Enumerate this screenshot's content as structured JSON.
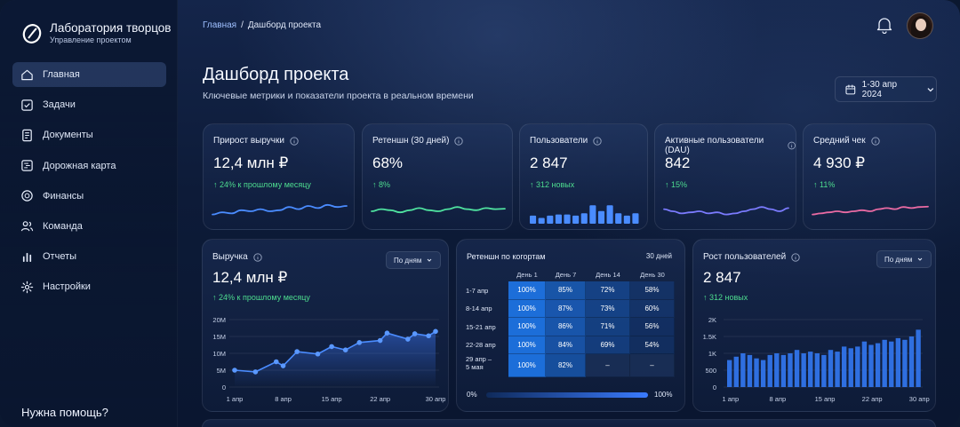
{
  "brand": {
    "title": "Лаборатория творцов",
    "subtitle": "Управление проектом"
  },
  "sidebar": {
    "items": [
      {
        "label": "Главная",
        "icon": "home-icon",
        "active": true
      },
      {
        "label": "Задачи",
        "icon": "checkbox-icon"
      },
      {
        "label": "Документы",
        "icon": "document-icon"
      },
      {
        "label": "Дорожная карта",
        "icon": "roadmap-icon"
      },
      {
        "label": "Финансы",
        "icon": "finance-icon"
      },
      {
        "label": "Команда",
        "icon": "team-icon"
      },
      {
        "label": "Отчеты",
        "icon": "reports-icon"
      },
      {
        "label": "Настройки",
        "icon": "settings-icon"
      }
    ],
    "help": "Нужна помощь?"
  },
  "breadcrumb": {
    "home": "Главная",
    "separator": "/",
    "current": "Дашборд проекта"
  },
  "header": {
    "title": "Дашборд проекта",
    "subtitle": "Ключевые метрики и показатели проекта в реальном времени",
    "date_range": "1-30 апр 2024"
  },
  "colors": {
    "accent": "#4a8cff",
    "positive": "#4ddc8f",
    "spark_blue": "#4a8cff",
    "spark_green": "#4fe3a0",
    "spark_purple": "#7b7bff",
    "spark_pink": "#e96aa3"
  },
  "kpis": [
    {
      "title": "Прирост выручки",
      "value": "12,4 млн ₽",
      "delta": "↑ 24% к прошлому месяцу"
    },
    {
      "title": "Ретеншн (30 дней)",
      "value": "68%",
      "delta": "↑ 8%"
    },
    {
      "title": "Пользователи",
      "value": "2 847",
      "delta": "↑ 312 новых"
    },
    {
      "title": "Активные пользователи (DAU)",
      "value": "842",
      "delta": "↑ 15%"
    },
    {
      "title": "Средний чек",
      "value": "4 930 ₽",
      "delta": "↑ 11%"
    }
  ],
  "revenue": {
    "title": "Выручка",
    "value": "12,4 млн ₽",
    "delta": "↑ 24% к прошлому месяцу",
    "period": "По дням"
  },
  "cohort": {
    "title": "Ретеншн по когортам",
    "period": "30 дней",
    "columns": [
      "День 1",
      "День 7",
      "День 14",
      "День 30"
    ],
    "rows": [
      {
        "label": "1-7 апр",
        "cells": [
          "100%",
          "85%",
          "72%",
          "58%"
        ]
      },
      {
        "label": "8-14 апр",
        "cells": [
          "100%",
          "87%",
          "73%",
          "60%"
        ]
      },
      {
        "label": "15-21 апр",
        "cells": [
          "100%",
          "86%",
          "71%",
          "56%"
        ]
      },
      {
        "label": "22-28 апр",
        "cells": [
          "100%",
          "84%",
          "69%",
          "54%"
        ]
      },
      {
        "label": "29 апр –\n5 мая",
        "cells": [
          "100%",
          "82%",
          "–",
          "–"
        ]
      }
    ],
    "scale_min": "0%",
    "scale_max": "100%"
  },
  "users_growth": {
    "title": "Рост пользователей",
    "value": "2 847",
    "delta": "↑ 312 новых",
    "period": "По дням"
  },
  "chart_data": [
    {
      "type": "line",
      "title": "Выручка",
      "x_tick_labels": [
        "1 апр",
        "8 апр",
        "15 апр",
        "22 апр",
        "30 апр"
      ],
      "y_tick_labels": [
        "0",
        "5M",
        "10M",
        "15M",
        "20M"
      ],
      "ylim": [
        0,
        20
      ],
      "x": [
        1,
        4,
        7,
        8,
        10,
        13,
        15,
        17,
        19,
        22,
        23,
        26,
        27,
        29,
        30
      ],
      "values": [
        5.0,
        4.5,
        7.5,
        6.3,
        10.5,
        9.8,
        12.0,
        11.0,
        13.2,
        13.8,
        16.0,
        14.2,
        15.8,
        15.2,
        16.5
      ],
      "grid": true
    },
    {
      "type": "bar",
      "title": "Рост пользователей",
      "x_tick_labels": [
        "1 апр",
        "8 апр",
        "15 апр",
        "22 апр",
        "30 апр"
      ],
      "y_tick_labels": [
        "0",
        "500",
        "1K",
        "1.5K",
        "2K"
      ],
      "ylim": [
        0,
        2000
      ],
      "values": [
        800,
        900,
        1000,
        950,
        850,
        800,
        950,
        1000,
        950,
        1000,
        1100,
        1000,
        1050,
        1000,
        950,
        1100,
        1050,
        1200,
        1150,
        1200,
        1350,
        1250,
        1300,
        1400,
        1350,
        1450,
        1400,
        1500,
        1700
      ]
    }
  ],
  "sparklines": {
    "revenue_kpi": [
      0.35,
      0.45,
      0.4,
      0.55,
      0.5,
      0.6,
      0.5,
      0.55,
      0.7,
      0.6,
      0.75,
      0.65,
      0.8,
      0.7,
      0.75
    ],
    "retention_kpi": [
      0.5,
      0.6,
      0.55,
      0.45,
      0.55,
      0.65,
      0.55,
      0.5,
      0.6,
      0.7,
      0.6,
      0.55,
      0.65,
      0.6,
      0.62
    ],
    "users_kpi": [
      0.35,
      0.25,
      0.35,
      0.4,
      0.4,
      0.35,
      0.45,
      0.8,
      0.55,
      0.8,
      0.45,
      0.35,
      0.45
    ],
    "dau_kpi": [
      0.6,
      0.5,
      0.4,
      0.45,
      0.5,
      0.4,
      0.45,
      0.35,
      0.4,
      0.5,
      0.6,
      0.7,
      0.6,
      0.5,
      0.65
    ],
    "avg_check_kpi": [
      0.35,
      0.4,
      0.45,
      0.5,
      0.45,
      0.5,
      0.55,
      0.5,
      0.6,
      0.65,
      0.6,
      0.7,
      0.65,
      0.7,
      0.72
    ]
  }
}
